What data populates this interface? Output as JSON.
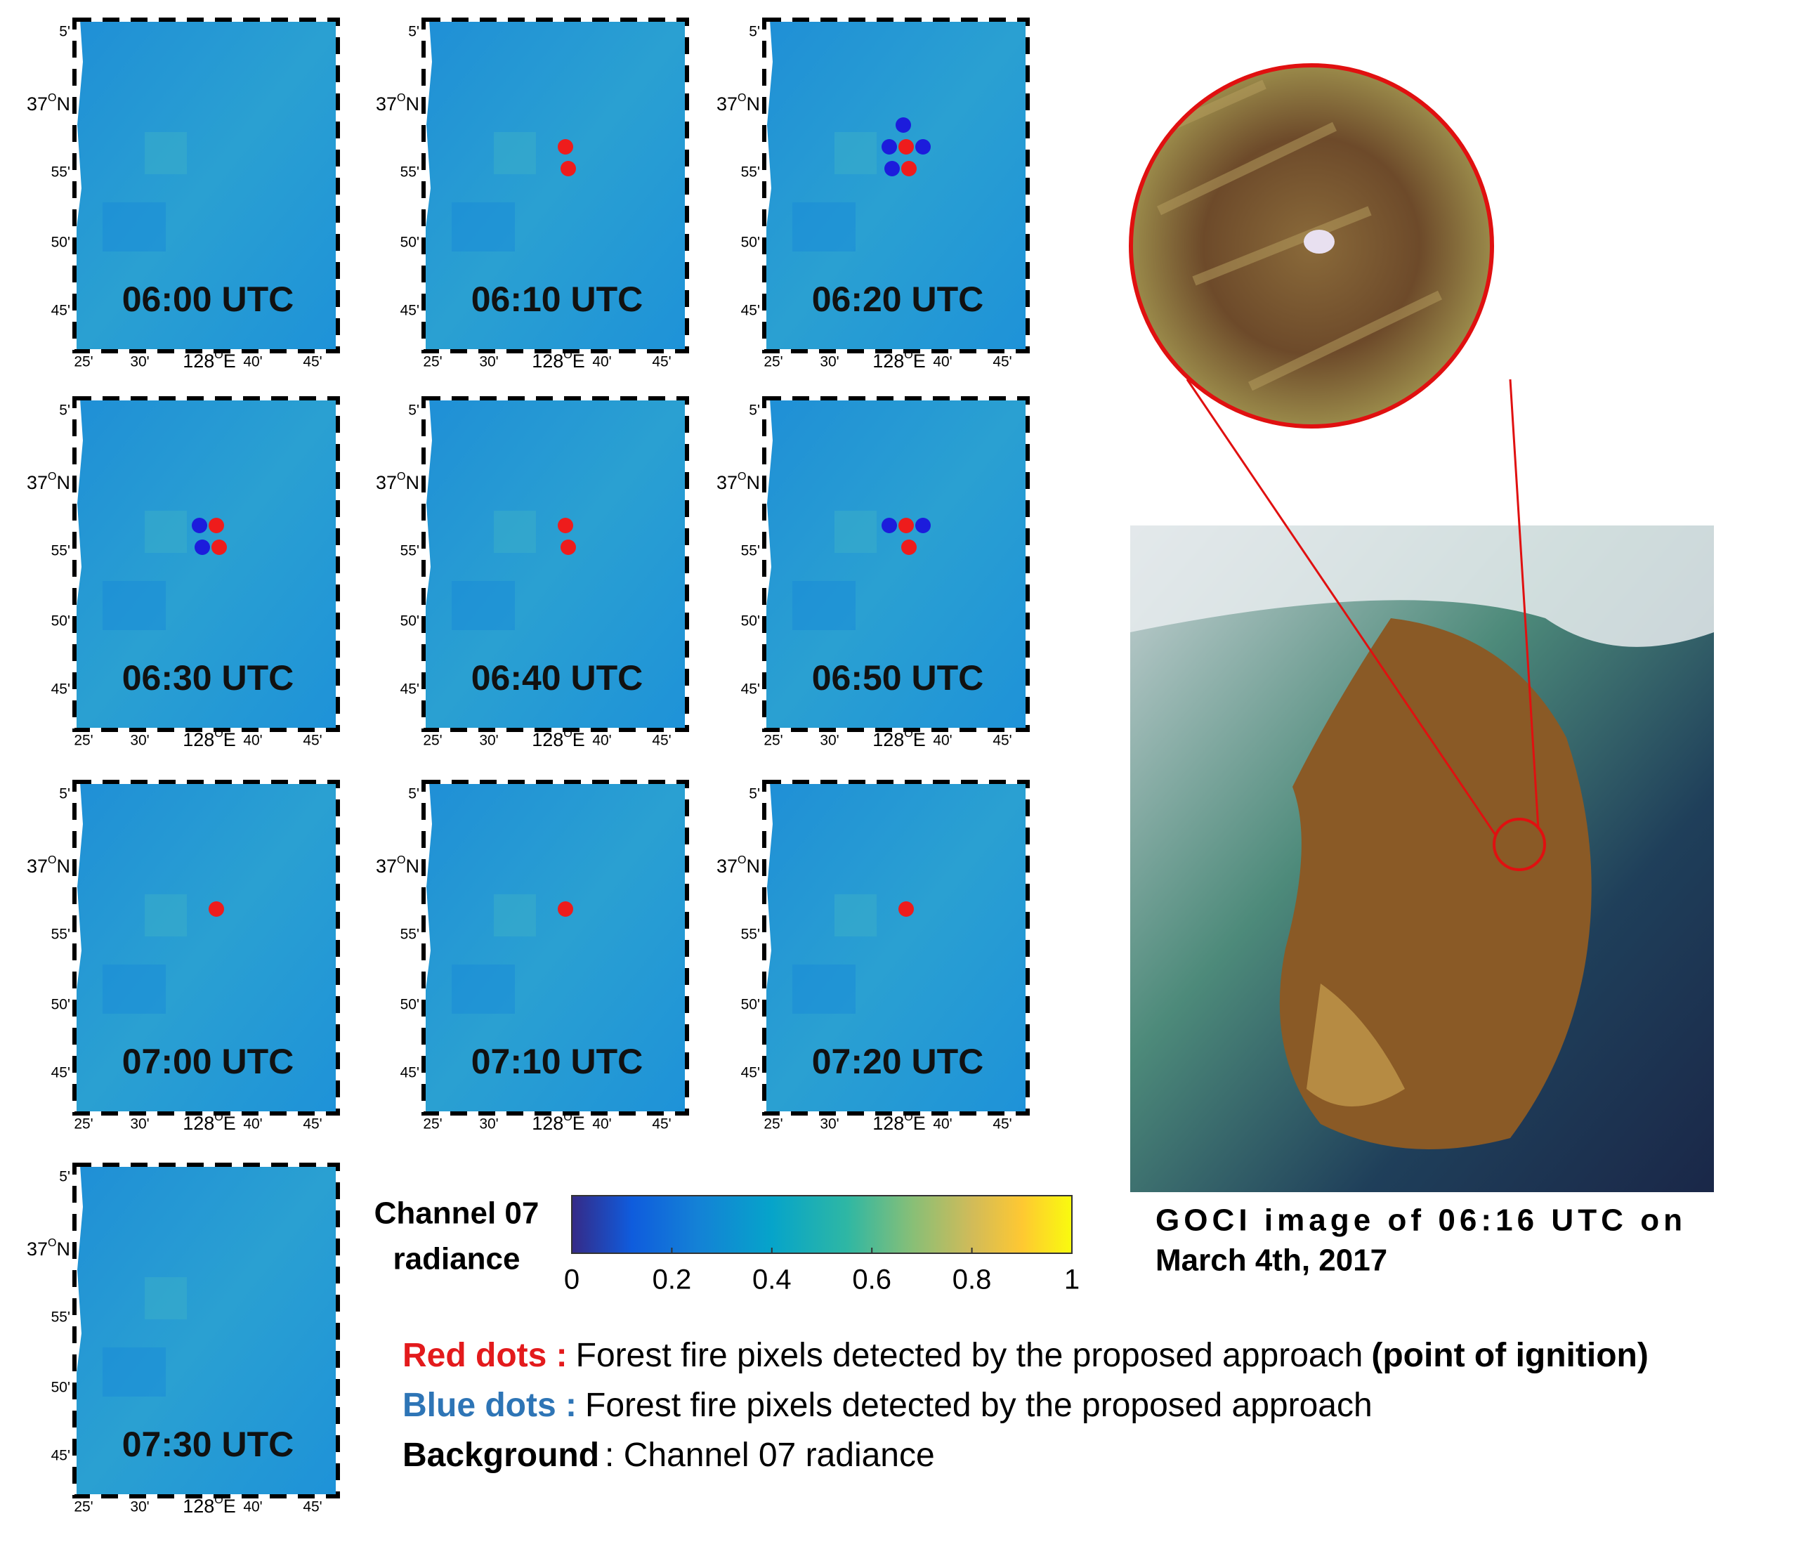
{
  "panels": [
    {
      "time": "06:00 UTC",
      "red": [],
      "blue": []
    },
    {
      "time": "06:10 UTC",
      "red": [
        [
          0,
          0
        ],
        [
          0,
          1
        ]
      ],
      "blue": []
    },
    {
      "time": "06:20 UTC",
      "red": [
        [
          0,
          0
        ],
        [
          0,
          1
        ]
      ],
      "blue": [
        [
          0,
          -1
        ],
        [
          -1,
          0
        ],
        [
          1,
          0
        ],
        [
          -1,
          1
        ]
      ]
    },
    {
      "time": "06:30 UTC",
      "red": [
        [
          0,
          0
        ],
        [
          0,
          1
        ]
      ],
      "blue": [
        [
          -1,
          0
        ],
        [
          -1,
          1
        ]
      ]
    },
    {
      "time": "06:40 UTC",
      "red": [
        [
          0,
          0
        ],
        [
          0,
          1
        ]
      ],
      "blue": []
    },
    {
      "time": "06:50 UTC",
      "red": [
        [
          0,
          0
        ],
        [
          0,
          1
        ]
      ],
      "blue": [
        [
          -1,
          0
        ],
        [
          1,
          0
        ]
      ]
    },
    {
      "time": "07:00 UTC",
      "red": [
        [
          0,
          0
        ]
      ],
      "blue": []
    },
    {
      "time": "07:10 UTC",
      "red": [
        [
          0,
          0
        ]
      ],
      "blue": []
    },
    {
      "time": "07:20 UTC",
      "red": [
        [
          0,
          0
        ]
      ],
      "blue": []
    },
    {
      "time": "07:30 UTC",
      "red": [],
      "blue": []
    }
  ],
  "dot_colors": {
    "red": "#ee1c1c",
    "blue": "#1c1cdc"
  },
  "axis_labels": {
    "lat": [
      "5'",
      {
        "deg": "37",
        "sup": "O",
        "hemi": "N"
      },
      "55'",
      "50'",
      "45'"
    ],
    "lon": [
      "25'",
      "30'",
      {
        "deg": "128",
        "sup": "O",
        "hemi": "E"
      },
      "40'",
      "45'"
    ]
  },
  "colorbar": {
    "title": [
      "Channel 07",
      "radiance"
    ],
    "lim": [
      0,
      1
    ],
    "ticks": [
      0,
      0.2,
      0.4,
      0.6,
      0.8,
      1
    ]
  },
  "caption": [
    "GOCI image of 06:16 UTC on",
    "March 4th, 2017"
  ],
  "legend": [
    {
      "key": "Red dots :",
      "color": "#e31a1c",
      "text": "Forest fire pixels detected by the proposed approach",
      "note": "(point of ignition)"
    },
    {
      "key": "Blue dots :",
      "color": "#2e75b6",
      "text": "Forest fire pixels detected by the proposed approach"
    },
    {
      "key": "Background",
      "color": "#000000",
      "text": ": Channel 07 radiance"
    }
  ]
}
